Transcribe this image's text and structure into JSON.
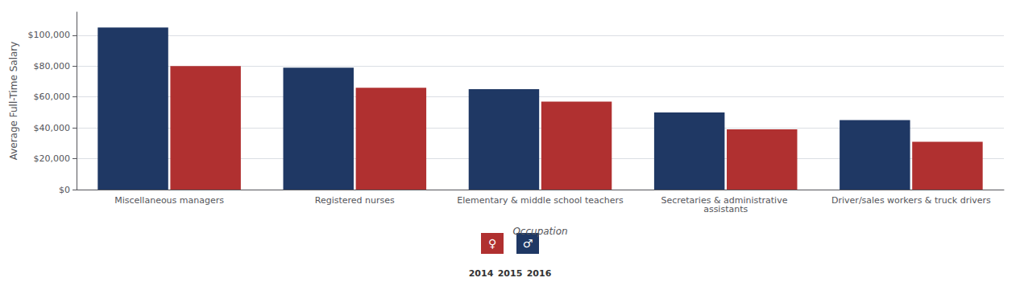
{
  "chart_data": {
    "type": "bar",
    "categories": [
      "Miscellaneous managers",
      "Registered nurses",
      "Elementary & middle school teachers",
      "Secretaries & administrative assistants",
      "Driver/sales workers & truck drivers"
    ],
    "series": [
      {
        "name": "♂",
        "color": "#1f3864",
        "values": [
          105000,
          79000,
          65000,
          50000,
          45000
        ]
      },
      {
        "name": "♀",
        "color": "#b03030",
        "values": [
          80000,
          66000,
          57000,
          39000,
          31000
        ]
      }
    ],
    "xlabel": "Occupation",
    "ylabel": "Average Full-Time Salary",
    "ylim": [
      0,
      115000
    ],
    "yticks": [
      {
        "value": 0,
        "label": "$0"
      },
      {
        "value": 20000,
        "label": "$20,000"
      },
      {
        "value": 40000,
        "label": "$40,000"
      },
      {
        "value": 60000,
        "label": "$60,000"
      },
      {
        "value": 80000,
        "label": "$80,000"
      },
      {
        "value": 100000,
        "label": "$100,000"
      }
    ],
    "grid": true,
    "annotations": [
      "2014",
      "2015",
      "2016"
    ]
  }
}
